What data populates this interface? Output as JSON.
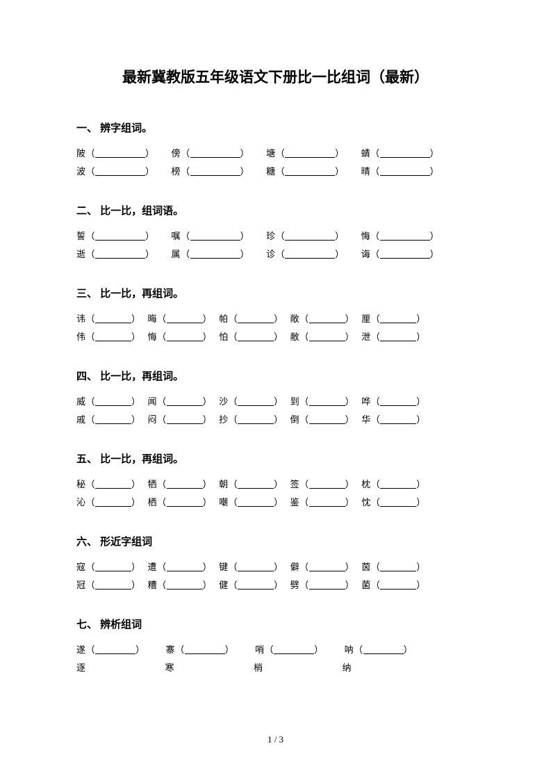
{
  "title": "最新冀教版五年级语文下册比一比组词（最新）",
  "footer": "1 / 3",
  "text_color": "#000000",
  "background_color": "#ffffff",
  "title_fontsize": 21,
  "heading_fontsize": 15,
  "body_fontsize": 13,
  "sections": [
    {
      "heading": "一、 辨字组词。",
      "blank_width": 72,
      "gap_width": 24,
      "rows": [
        [
          "陂",
          "傍",
          "塘",
          "蜻"
        ],
        [
          "波",
          "榜",
          "糖",
          "晴"
        ]
      ]
    },
    {
      "heading": "二、 比一比，组词语。",
      "blank_width": 72,
      "gap_width": 24,
      "rows": [
        [
          "誓",
          "嘱",
          "珍",
          "悔"
        ],
        [
          "逝",
          "属",
          "诊",
          "诲"
        ]
      ]
    },
    {
      "heading": "三、 比一比，再组词。",
      "blank_width": 52,
      "gap_width": 10,
      "rows": [
        [
          "讳",
          "晦",
          "帕",
          "敞",
          "厘"
        ],
        [
          "伟",
          "悔",
          "怕",
          "敝",
          "泄"
        ]
      ]
    },
    {
      "heading": "四、 比一比，再组词。",
      "blank_width": 52,
      "gap_width": 10,
      "rows": [
        [
          "威",
          "闻",
          "沙",
          "到",
          "哗"
        ],
        [
          "戚",
          "闷",
          "抄",
          "倒",
          "华"
        ]
      ]
    },
    {
      "heading": "五、 比一比，再组词。",
      "blank_width": 52,
      "gap_width": 10,
      "rows": [
        [
          "秘",
          "牺",
          "朝",
          "签",
          "枕"
        ],
        [
          "沁",
          "栖",
          "嘲",
          "鉴",
          "忱"
        ]
      ]
    },
    {
      "heading": "六、 形近字组词",
      "blank_width": 52,
      "gap_width": 10,
      "rows": [
        [
          "寇",
          "遭",
          "键",
          "僻",
          "茵"
        ],
        [
          "冠",
          "糟",
          "健",
          "劈",
          "菌"
        ]
      ]
    },
    {
      "heading": "七、 辨析组词",
      "blank_width": 58,
      "gap_width": 30,
      "no_paren": false,
      "rows": [
        [
          "遂",
          "寨",
          "哨",
          "呐"
        ],
        [
          "逐",
          "寒",
          "梢",
          "纳"
        ]
      ],
      "row_no_paren": [
        false,
        true
      ]
    }
  ]
}
